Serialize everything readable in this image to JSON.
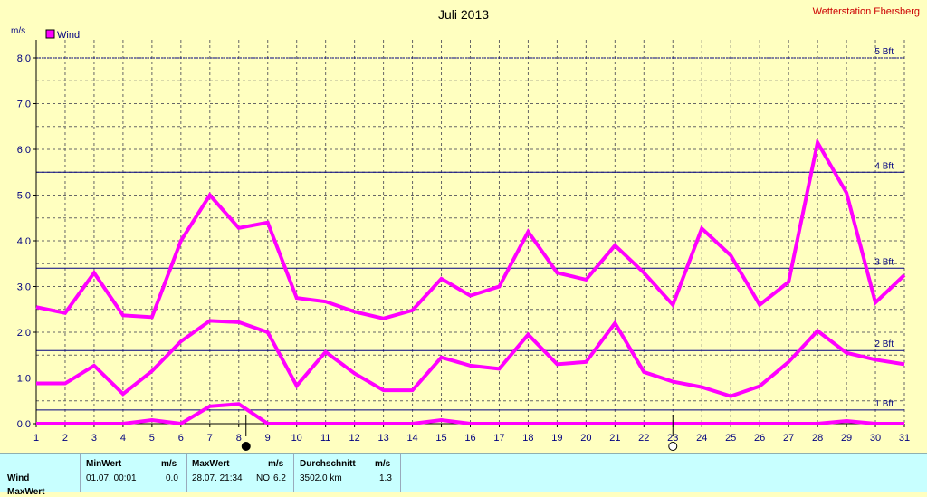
{
  "title": "Juli 2013",
  "station": "Wetterstation Ebersberg",
  "chart_data": {
    "type": "line",
    "title": "Juli 2013",
    "ylabel": "m/s",
    "xlabel": "",
    "xlim": [
      1,
      31
    ],
    "ylim": [
      0,
      8
    ],
    "x": [
      1,
      2,
      3,
      4,
      5,
      6,
      7,
      8,
      9,
      10,
      11,
      12,
      13,
      14,
      15,
      16,
      17,
      18,
      19,
      20,
      21,
      22,
      23,
      24,
      25,
      26,
      27,
      28,
      29,
      30,
      31
    ],
    "x_tick_labels": [
      "1",
      "2",
      "3",
      "4",
      "5",
      "6",
      "7",
      "8",
      "9",
      "10",
      "11",
      "12",
      "13",
      "14",
      "15",
      "16",
      "17",
      "18",
      "19",
      "20",
      "21",
      "22",
      "23",
      "24",
      "25",
      "26",
      "27",
      "28",
      "29",
      "30",
      "31"
    ],
    "y_tick_labels": [
      "0.0",
      "1.0",
      "2.0",
      "3.0",
      "4.0",
      "5.0",
      "6.0",
      "7.0",
      "8.0"
    ],
    "legend": "top-left",
    "legend_label": "Wind",
    "grid": true,
    "series": [
      {
        "role": "max",
        "color": "#ff00ff",
        "values": [
          2.55,
          2.42,
          3.3,
          2.37,
          2.33,
          4.0,
          5.0,
          4.28,
          4.4,
          2.75,
          2.67,
          2.45,
          2.3,
          2.48,
          3.17,
          2.8,
          3.0,
          4.2,
          3.3,
          3.15,
          3.9,
          3.3,
          2.6,
          4.27,
          3.68,
          2.6,
          3.1,
          6.15,
          5.05,
          2.65,
          3.25
        ]
      },
      {
        "role": "mean",
        "color": "#ff00ff",
        "values": [
          0.88,
          0.88,
          1.27,
          0.65,
          1.15,
          1.8,
          2.25,
          2.22,
          2.0,
          0.83,
          1.57,
          1.1,
          0.73,
          0.73,
          1.45,
          1.27,
          1.2,
          1.95,
          1.3,
          1.35,
          2.2,
          1.13,
          0.92,
          0.8,
          0.6,
          0.82,
          1.35,
          2.03,
          1.55,
          1.4,
          1.3
        ]
      },
      {
        "role": "min",
        "color": "#ff00ff",
        "values": [
          0.0,
          0.0,
          0.0,
          0.0,
          0.08,
          0.0,
          0.38,
          0.43,
          0.0,
          0.0,
          0.0,
          0.0,
          0.0,
          0.0,
          0.08,
          0.0,
          0.0,
          0.0,
          0.0,
          0.0,
          0.0,
          0.0,
          0.0,
          0.0,
          0.0,
          0.0,
          0.0,
          0.0,
          0.06,
          0.0,
          0.0
        ]
      }
    ],
    "reference_lines": [
      {
        "label": "1 Bft",
        "value": 0.3
      },
      {
        "label": "2 Bft",
        "value": 1.6
      },
      {
        "label": "3 Bft",
        "value": 3.4
      },
      {
        "label": "4 Bft",
        "value": 5.5
      },
      {
        "label": "5 Bft",
        "value": 8.0
      }
    ],
    "moon_markers": [
      {
        "day": 8.25,
        "phase": "new"
      },
      {
        "day": 23.0,
        "phase": "full"
      }
    ]
  },
  "stats": {
    "row_label": "Wind",
    "row_label_cut": "MaxWert",
    "min_header": "MinWert",
    "min_unit": "m/s",
    "min_date": "01.07.  00:01",
    "min_value": "0.0",
    "max_header": "MaxWert",
    "max_unit": "m/s",
    "max_date": "28.07.  21:34",
    "max_dir": "NO",
    "max_value": "6.2",
    "avg_header": "Durchschnitt",
    "avg_unit": "m/s",
    "avg_distance": "3502.0 km",
    "avg_value": "1.3"
  },
  "colors": {
    "background": "#ffffc0",
    "series": "#ff00ff",
    "reference_line": "#000080",
    "station": "#cc0000",
    "stats_background": "#c8ffff"
  }
}
